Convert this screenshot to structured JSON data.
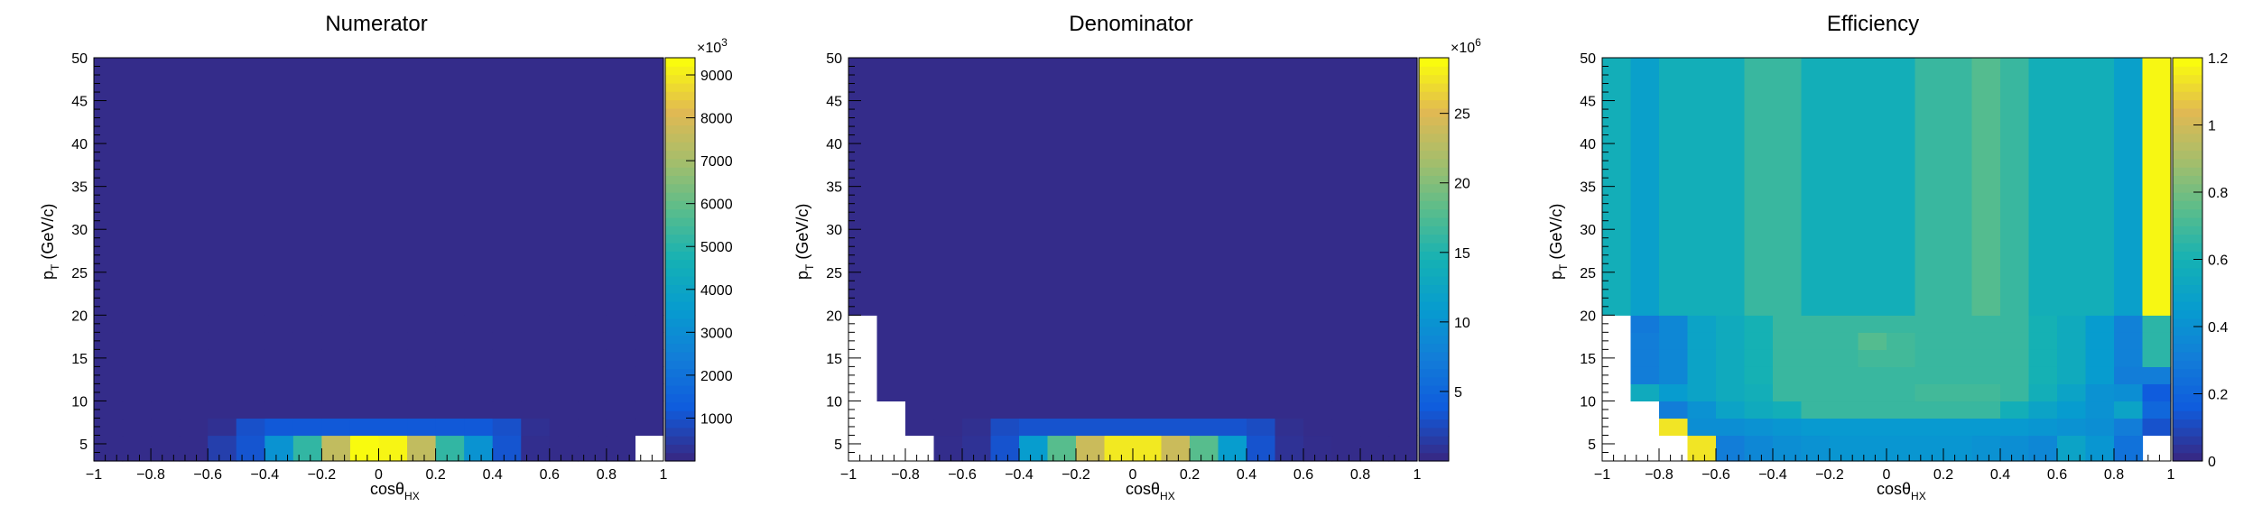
{
  "chart_data": [
    {
      "type": "heatmap",
      "title": "Numerator",
      "xlabel": "cosθ",
      "xlabel_sub": "HX",
      "ylabel": "p",
      "ylabel_sub": "T",
      "ylabel_suffix": " (GeV/c)",
      "xlim": [
        -1,
        1
      ],
      "ylim": [
        3,
        50
      ],
      "x_ticks": [
        -1,
        -0.8,
        -0.6,
        -0.4,
        -0.2,
        0,
        0.2,
        0.4,
        0.6,
        0.8,
        1
      ],
      "y_ticks": [
        5,
        10,
        15,
        20,
        25,
        30,
        35,
        40,
        45,
        50
      ],
      "x_bin_edges": [
        -1,
        -0.9,
        -0.8,
        -0.7,
        -0.6,
        -0.5,
        -0.4,
        -0.3,
        -0.2,
        -0.1,
        0,
        0.1,
        0.2,
        0.3,
        0.4,
        0.5,
        0.6,
        0.7,
        0.8,
        0.9,
        1
      ],
      "y_bin_edges": [
        3,
        6,
        8,
        10,
        12,
        14,
        16,
        18,
        20,
        50
      ],
      "colorbar": {
        "min": 0,
        "max": 9400,
        "multiplier": "×10",
        "multiplier_exp": "3",
        "ticks": [
          1000,
          2000,
          3000,
          4000,
          5000,
          6000,
          7000,
          8000,
          9000
        ]
      },
      "values": [
        [
          0,
          0,
          0,
          0,
          500,
          1000,
          3200,
          5200,
          7600,
          9400,
          9300,
          7600,
          5200,
          3200,
          1000,
          100,
          0,
          0,
          0,
          800
        ],
        [
          0,
          0,
          0,
          0,
          150,
          900,
          1100,
          1100,
          1100,
          1100,
          1100,
          1100,
          1100,
          1100,
          900,
          150,
          0,
          0,
          0,
          0
        ],
        [
          0,
          0,
          0,
          0,
          0,
          0,
          0,
          0,
          0,
          0,
          0,
          0,
          0,
          0,
          0,
          0,
          0,
          0,
          0,
          0
        ],
        [
          0,
          0,
          0,
          0,
          0,
          0,
          0,
          0,
          0,
          0,
          0,
          0,
          0,
          0,
          0,
          0,
          0,
          0,
          0,
          0
        ],
        [
          0,
          0,
          0,
          0,
          0,
          0,
          0,
          0,
          0,
          0,
          0,
          0,
          0,
          0,
          0,
          0,
          0,
          0,
          0,
          0
        ],
        [
          0,
          0,
          0,
          0,
          0,
          0,
          0,
          0,
          0,
          0,
          0,
          0,
          0,
          0,
          0,
          0,
          0,
          0,
          0,
          0
        ],
        [
          0,
          0,
          0,
          0,
          0,
          0,
          0,
          0,
          0,
          0,
          0,
          0,
          0,
          0,
          0,
          0,
          0,
          0,
          0,
          0
        ],
        [
          0,
          0,
          0,
          0,
          0,
          0,
          0,
          0,
          0,
          0,
          0,
          0,
          0,
          0,
          0,
          0,
          0,
          0,
          0,
          0
        ],
        [
          0,
          0,
          0,
          0,
          0,
          0,
          0,
          0,
          0,
          0,
          0,
          0,
          0,
          0,
          0,
          0,
          0,
          0,
          0,
          0
        ]
      ],
      "empty_cells": [
        [
          0,
          19
        ]
      ]
    },
    {
      "type": "heatmap",
      "title": "Denominator",
      "xlabel": "cosθ",
      "xlabel_sub": "HX",
      "ylabel": "p",
      "ylabel_sub": "T",
      "ylabel_suffix": " (GeV/c)",
      "xlim": [
        -1,
        1
      ],
      "ylim": [
        3,
        50
      ],
      "x_ticks": [
        -1,
        -0.8,
        -0.6,
        -0.4,
        -0.2,
        0,
        0.2,
        0.4,
        0.6,
        0.8,
        1
      ],
      "y_ticks": [
        5,
        10,
        15,
        20,
        25,
        30,
        35,
        40,
        45,
        50
      ],
      "x_bin_edges": [
        -1,
        -0.9,
        -0.8,
        -0.7,
        -0.6,
        -0.5,
        -0.4,
        -0.3,
        -0.2,
        -0.1,
        0,
        0.1,
        0.2,
        0.3,
        0.4,
        0.5,
        0.6,
        0.7,
        0.8,
        0.9,
        1
      ],
      "y_bin_edges": [
        3,
        6,
        8,
        10,
        12,
        14,
        16,
        18,
        20,
        50
      ],
      "colorbar": {
        "min": 0,
        "max": 29,
        "multiplier": "×10",
        "multiplier_exp": "6",
        "ticks": [
          5,
          10,
          15,
          20,
          25
        ]
      },
      "values": [
        [
          0,
          0,
          0,
          0.2,
          0.6,
          3,
          11,
          18,
          24,
          28,
          28,
          24,
          18,
          11,
          3,
          0.6,
          0.2,
          0,
          0,
          0
        ],
        [
          0,
          0,
          0,
          0.1,
          0.4,
          2.5,
          3,
          3,
          3,
          3,
          3,
          3,
          3,
          3,
          2.5,
          0.4,
          0.1,
          0,
          0,
          0
        ],
        [
          0,
          0,
          0,
          0,
          0,
          0,
          0,
          0,
          0,
          0,
          0,
          0,
          0,
          0,
          0,
          0,
          0,
          0,
          0,
          0
        ],
        [
          0,
          0,
          0,
          0,
          0,
          0,
          0,
          0,
          0,
          0,
          0,
          0,
          0,
          0,
          0,
          0,
          0,
          0,
          0,
          0
        ],
        [
          0,
          0,
          0,
          0,
          0,
          0,
          0,
          0,
          0,
          0,
          0,
          0,
          0,
          0,
          0,
          0,
          0,
          0,
          0,
          0
        ],
        [
          0,
          0,
          0,
          0,
          0,
          0,
          0,
          0,
          0,
          0,
          0,
          0,
          0,
          0,
          0,
          0,
          0,
          0,
          0,
          0
        ],
        [
          0,
          0,
          0,
          0,
          0,
          0,
          0,
          0,
          0,
          0,
          0,
          0,
          0,
          0,
          0,
          0,
          0,
          0,
          0,
          0
        ],
        [
          0,
          0,
          0,
          0,
          0,
          0,
          0,
          0,
          0,
          0,
          0,
          0,
          0,
          0,
          0,
          0,
          0,
          0,
          0,
          0
        ],
        [
          0,
          0,
          0,
          0,
          0,
          0,
          0,
          0,
          0,
          0,
          0,
          0,
          0,
          0,
          0,
          0,
          0,
          0,
          0,
          0
        ]
      ],
      "empty_cells": [
        [
          0,
          0
        ],
        [
          0,
          1
        ],
        [
          0,
          2
        ],
        [
          1,
          0
        ],
        [
          1,
          1
        ],
        [
          2,
          0
        ],
        [
          2,
          1
        ],
        [
          3,
          0
        ],
        [
          4,
          0
        ],
        [
          5,
          0
        ],
        [
          6,
          0
        ],
        [
          7,
          0
        ]
      ]
    },
    {
      "type": "heatmap",
      "title": "Efficiency",
      "xlabel": "cosθ",
      "xlabel_sub": "HX",
      "ylabel": "p",
      "ylabel_sub": "T",
      "ylabel_suffix": " (GeV/c)",
      "xlim": [
        -1,
        1
      ],
      "ylim": [
        3,
        50
      ],
      "x_ticks": [
        -1,
        -0.8,
        -0.6,
        -0.4,
        -0.2,
        0,
        0.2,
        0.4,
        0.6,
        0.8,
        1
      ],
      "y_ticks": [
        5,
        10,
        15,
        20,
        25,
        30,
        35,
        40,
        45,
        50
      ],
      "x_bin_edges": [
        -1,
        -0.9,
        -0.8,
        -0.7,
        -0.6,
        -0.5,
        -0.4,
        -0.3,
        -0.2,
        -0.1,
        0,
        0.1,
        0.2,
        0.3,
        0.4,
        0.5,
        0.6,
        0.7,
        0.8,
        0.9,
        1
      ],
      "y_bin_edges": [
        3,
        6,
        8,
        10,
        12,
        14,
        16,
        18,
        20,
        50
      ],
      "colorbar": {
        "min": 0,
        "max": 1.2,
        "multiplier": "",
        "multiplier_exp": "",
        "ticks": [
          0,
          0.2,
          0.4,
          0.6,
          0.8,
          1,
          1.2
        ]
      },
      "values": [
        [
          0,
          0,
          0,
          1.15,
          0.3,
          0.35,
          0.38,
          0.4,
          0.42,
          0.42,
          0.42,
          0.42,
          0.42,
          0.4,
          0.38,
          0.35,
          0.5,
          0.42,
          0.25,
          0
        ],
        [
          0,
          0,
          1.15,
          0.38,
          0.38,
          0.4,
          0.42,
          0.44,
          0.44,
          0.44,
          0.44,
          0.44,
          0.44,
          0.44,
          0.44,
          0.42,
          0.4,
          0.38,
          0.3,
          0.12
        ],
        [
          0,
          0,
          0.3,
          0.4,
          0.5,
          0.55,
          0.58,
          0.68,
          0.68,
          0.68,
          0.68,
          0.68,
          0.68,
          0.68,
          0.58,
          0.5,
          0.45,
          0.4,
          0.5,
          0.2
        ],
        [
          0,
          0.55,
          0.45,
          0.5,
          0.55,
          0.58,
          0.68,
          0.68,
          0.68,
          0.68,
          0.68,
          0.7,
          0.7,
          0.7,
          0.68,
          0.58,
          0.5,
          0.4,
          0.38,
          0.15
        ],
        [
          0,
          0.3,
          0.35,
          0.5,
          0.55,
          0.6,
          0.68,
          0.68,
          0.68,
          0.68,
          0.68,
          0.68,
          0.68,
          0.68,
          0.68,
          0.6,
          0.55,
          0.45,
          0.3,
          0.3
        ],
        [
          0,
          0.3,
          0.35,
          0.5,
          0.55,
          0.6,
          0.68,
          0.68,
          0.68,
          0.7,
          0.7,
          0.68,
          0.68,
          0.68,
          0.68,
          0.6,
          0.55,
          0.45,
          0.32,
          0.65
        ],
        [
          0,
          0.3,
          0.35,
          0.5,
          0.55,
          0.6,
          0.68,
          0.68,
          0.68,
          0.74,
          0.7,
          0.68,
          0.68,
          0.68,
          0.68,
          0.6,
          0.55,
          0.45,
          0.32,
          0.65
        ],
        [
          0,
          0.28,
          0.35,
          0.5,
          0.55,
          0.6,
          0.68,
          0.68,
          0.68,
          0.68,
          0.68,
          0.68,
          0.68,
          0.68,
          0.68,
          0.6,
          0.55,
          0.45,
          0.32,
          0.65
        ],
        [
          0.58,
          0.48,
          0.58,
          0.58,
          0.58,
          0.68,
          0.68,
          0.58,
          0.58,
          0.58,
          0.58,
          0.68,
          0.68,
          0.74,
          0.68,
          0.58,
          0.58,
          0.58,
          0.48,
          1.19
        ]
      ],
      "empty_cells": [
        [
          0,
          0
        ],
        [
          0,
          1
        ],
        [
          0,
          2
        ],
        [
          0,
          19
        ],
        [
          1,
          0
        ],
        [
          1,
          1
        ],
        [
          2,
          0
        ],
        [
          2,
          1
        ],
        [
          3,
          0
        ],
        [
          4,
          0
        ],
        [
          5,
          0
        ],
        [
          6,
          0
        ],
        [
          7,
          0
        ]
      ]
    }
  ]
}
